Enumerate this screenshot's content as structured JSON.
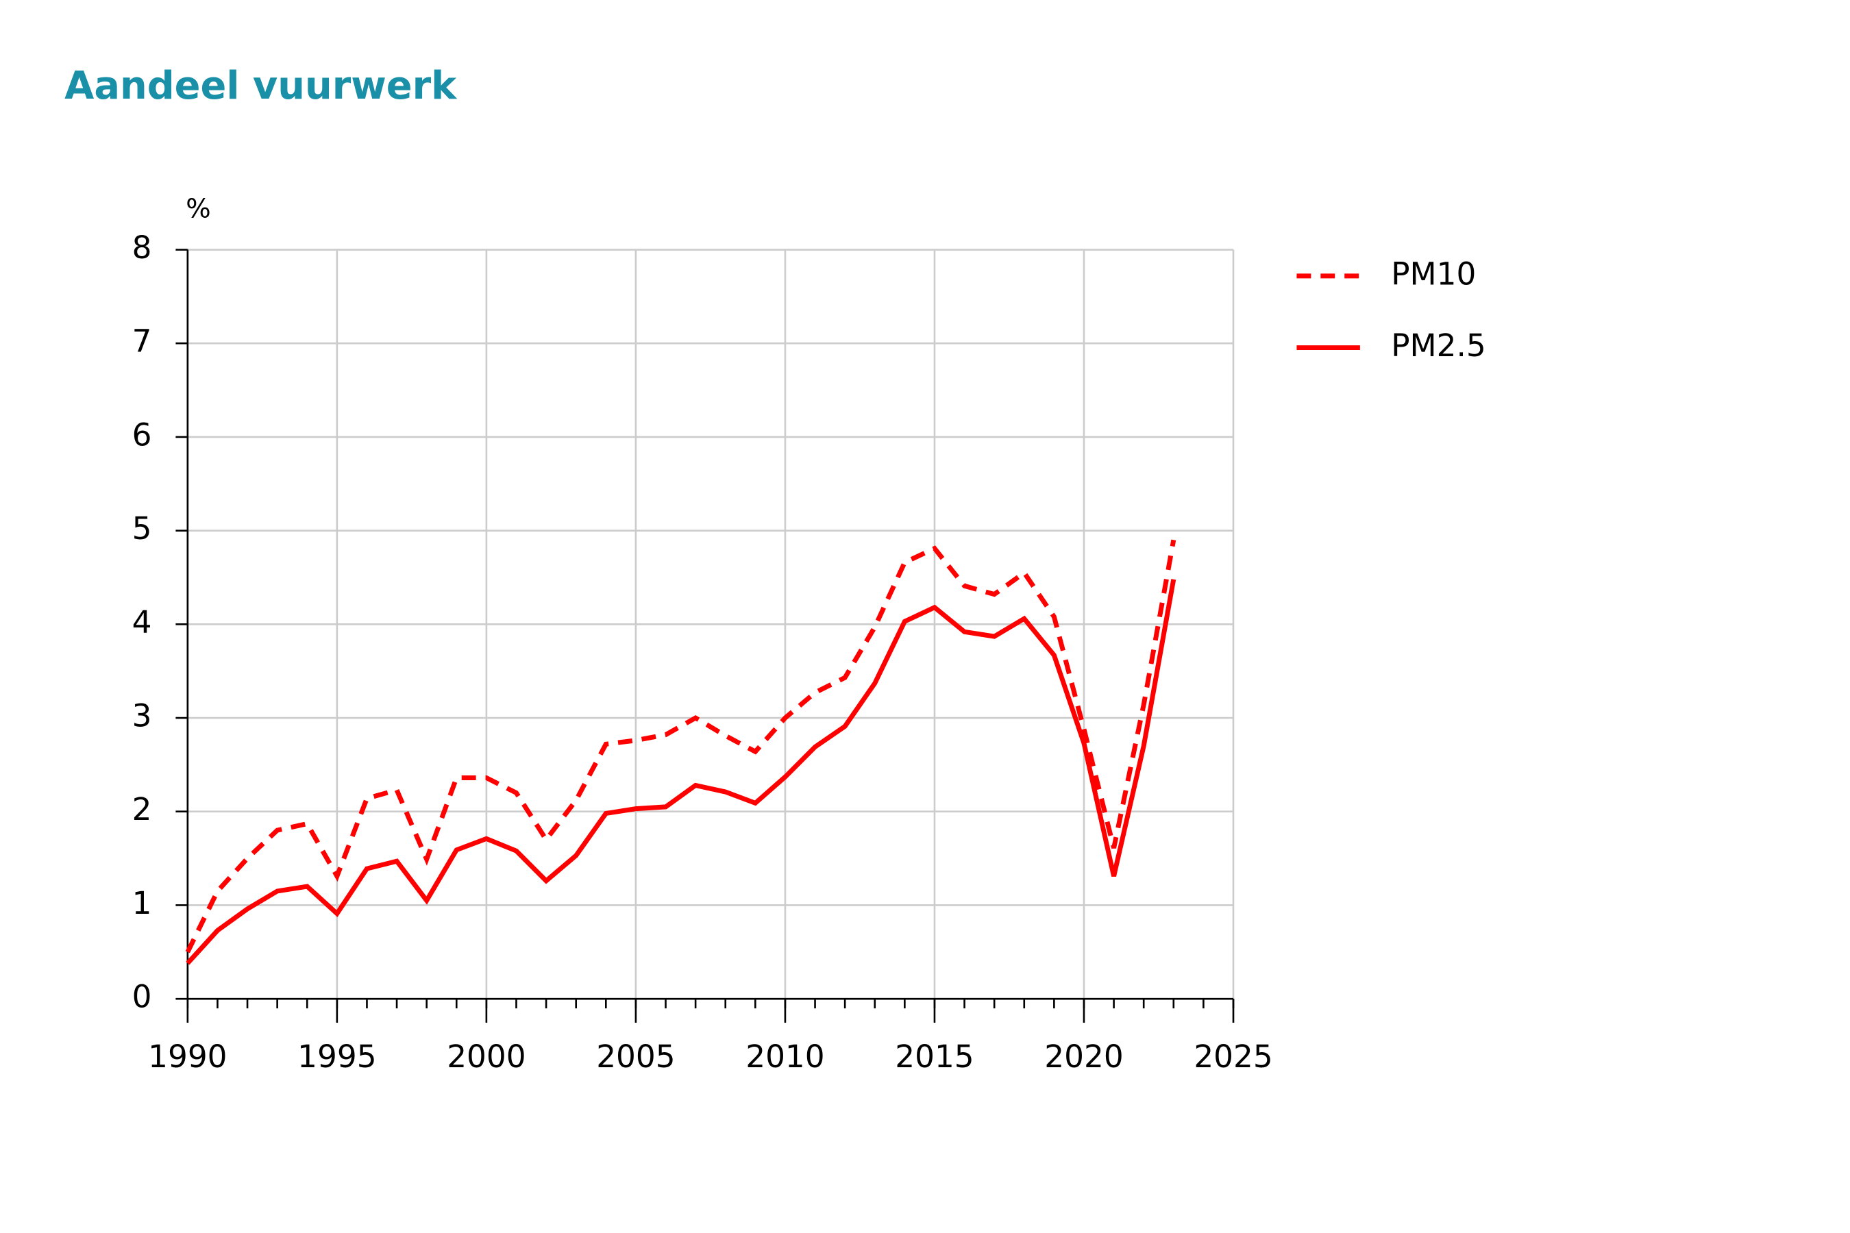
{
  "chart_data": {
    "type": "line",
    "title": "Aandeel vuurwerk",
    "y_label": "%",
    "x": [
      1990,
      1991,
      1992,
      1993,
      1994,
      1995,
      1996,
      1997,
      1998,
      1999,
      2000,
      2001,
      2002,
      2003,
      2004,
      2005,
      2006,
      2007,
      2008,
      2009,
      2010,
      2011,
      2012,
      2013,
      2014,
      2015,
      2016,
      2017,
      2018,
      2019,
      2020,
      2021,
      2022,
      2023
    ],
    "series": [
      {
        "name": "PM10",
        "color": "#ff0000",
        "style": "dashed",
        "values": [
          0.5,
          1.15,
          1.5,
          1.8,
          1.87,
          1.31,
          2.14,
          2.23,
          1.49,
          2.36,
          2.36,
          2.2,
          1.7,
          2.12,
          2.72,
          2.76,
          2.82,
          3.0,
          2.81,
          2.64,
          3.0,
          3.27,
          3.43,
          3.97,
          4.66,
          4.81,
          4.41,
          4.32,
          4.55,
          4.08,
          2.88,
          1.61,
          3.14,
          4.9
        ]
      },
      {
        "name": "PM2.5",
        "color": "#ff0000",
        "style": "solid",
        "values": [
          0.38,
          0.73,
          0.96,
          1.15,
          1.2,
          0.91,
          1.39,
          1.47,
          1.05,
          1.59,
          1.71,
          1.58,
          1.26,
          1.53,
          1.98,
          2.03,
          2.05,
          2.28,
          2.21,
          2.09,
          2.37,
          2.69,
          2.91,
          3.37,
          4.03,
          4.18,
          3.92,
          3.87,
          4.06,
          3.67,
          2.73,
          1.31,
          2.7,
          4.48
        ]
      }
    ],
    "xlim": [
      1990,
      2025
    ],
    "xticks": [
      1990,
      1995,
      2000,
      2005,
      2010,
      2015,
      2020,
      2025
    ],
    "xminorticks": [
      1990,
      1991,
      1992,
      1993,
      1994,
      1995,
      1996,
      1997,
      1998,
      1999,
      2000,
      2001,
      2002,
      2003,
      2004,
      2005,
      2006,
      2007,
      2008,
      2009,
      2010,
      2011,
      2012,
      2013,
      2014,
      2015,
      2016,
      2017,
      2018,
      2019,
      2020,
      2021,
      2022,
      2023,
      2024,
      2025
    ],
    "ylim": [
      0,
      8
    ],
    "yticks": [
      0,
      1,
      2,
      3,
      4,
      5,
      6,
      7,
      8
    ],
    "grid": true,
    "legend": "right"
  }
}
